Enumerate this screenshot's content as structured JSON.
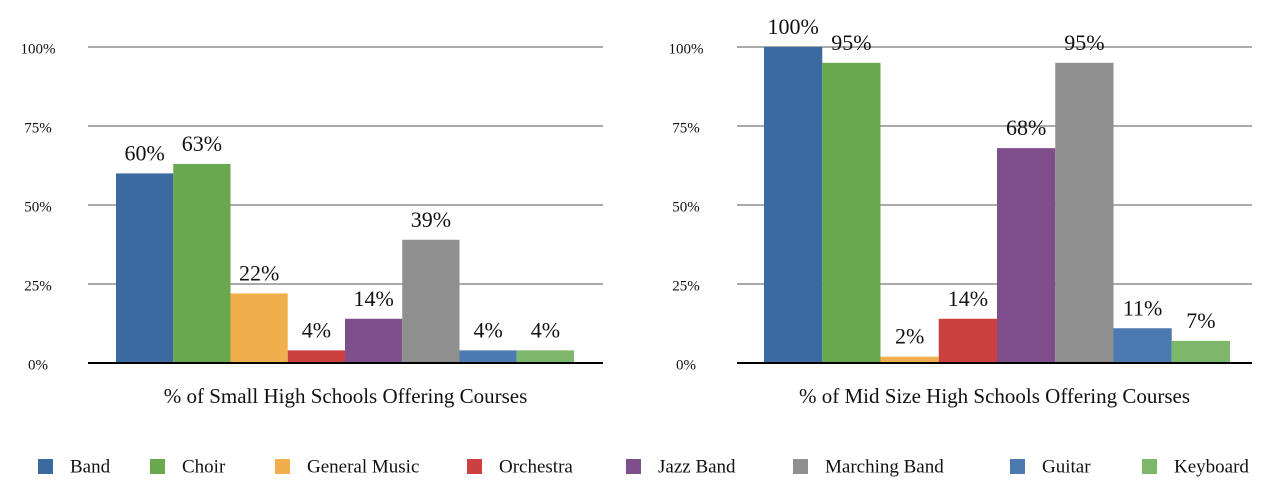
{
  "legend": [
    {
      "name": "Band",
      "color": "#3b6aa0"
    },
    {
      "name": "Choir",
      "color": "#6aa84f"
    },
    {
      "name": "General Music",
      "color": "#f0ae4c"
    },
    {
      "name": "Orchestra",
      "color": "#cc4140"
    },
    {
      "name": "Jazz Band",
      "color": "#7f4f8c"
    },
    {
      "name": "Marching Band",
      "color": "#8f8f8f"
    },
    {
      "name": "Guitar",
      "color": "#4a7ab0"
    },
    {
      "name": "Keyboard",
      "color": "#7db86a"
    }
  ],
  "chart_data": [
    {
      "type": "bar",
      "xlabel": "% of Small High Schools Offering Courses",
      "values": [
        60,
        63,
        22,
        4,
        14,
        39,
        4,
        4
      ],
      "value_labels": [
        "60%",
        "63%",
        "22%",
        "4%",
        "14%",
        "39%",
        "4%",
        "4%"
      ],
      "ylim": [
        0,
        100
      ],
      "yticks": [
        {
          "value": 0,
          "label": "0%"
        },
        {
          "value": 25,
          "label": "25%"
        },
        {
          "value": 50,
          "label": "50%"
        },
        {
          "value": 75,
          "label": "75%"
        },
        {
          "value": 100,
          "label": "100%"
        }
      ],
      "grid": true
    },
    {
      "type": "bar",
      "xlabel": "% of Mid Size High Schools Offering Courses",
      "values": [
        100,
        95,
        2,
        14,
        68,
        95,
        11,
        7
      ],
      "value_labels": [
        "100%",
        "95%",
        "2%",
        "14%",
        "68%",
        "95%",
        "11%",
        "7%"
      ],
      "ylim": [
        0,
        100
      ],
      "yticks": [
        {
          "value": 0,
          "label": "0%"
        },
        {
          "value": 25,
          "label": "25%"
        },
        {
          "value": 50,
          "label": "50%"
        },
        {
          "value": 75,
          "label": "75%"
        },
        {
          "value": 100,
          "label": "100%"
        }
      ],
      "grid": true
    }
  ]
}
